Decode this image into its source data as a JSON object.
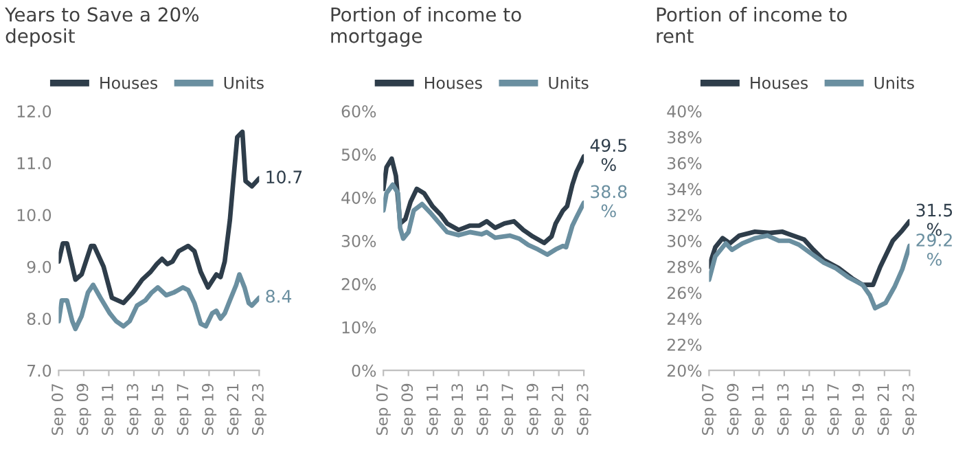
{
  "chart_data": [
    {
      "type": "line",
      "title": "Years to Save a 20%\ndeposit",
      "legend": "top",
      "grid": false,
      "xlim": [
        "2007-09",
        "2023-09"
      ],
      "ylim": [
        7.0,
        12.0
      ],
      "xticks": [
        {
          "value": "2007-09",
          "label": "Sep 07"
        },
        {
          "value": "2009-09",
          "label": "Sep 09"
        },
        {
          "value": "2011-09",
          "label": "Sep 11"
        },
        {
          "value": "2013-09",
          "label": "Sep 13"
        },
        {
          "value": "2015-09",
          "label": "Sep 15"
        },
        {
          "value": "2017-09",
          "label": "Sep 17"
        },
        {
          "value": "2019-09",
          "label": "Sep 19"
        },
        {
          "value": "2021-09",
          "label": "Sep 21"
        },
        {
          "value": "2023-09",
          "label": "Sep 23"
        }
      ],
      "yticks": [
        {
          "value": 7,
          "label": "7.0"
        },
        {
          "value": 8,
          "label": "8.0"
        },
        {
          "value": 9,
          "label": "9.0"
        },
        {
          "value": 10,
          "label": "10.0"
        },
        {
          "value": 11,
          "label": "11.0"
        },
        {
          "value": 12,
          "label": "12.0"
        }
      ],
      "series": [
        {
          "name": "Houses",
          "color": "#2e3d4a",
          "x": [
            "2007-09",
            "2008-01",
            "2008-05",
            "2009-01",
            "2009-07",
            "2010-04",
            "2010-07",
            "2011-04",
            "2011-12",
            "2012-11",
            "2013-08",
            "2014-05",
            "2015-01",
            "2015-07",
            "2015-12",
            "2016-05",
            "2016-10",
            "2017-04",
            "2018-01",
            "2018-07",
            "2019-01",
            "2019-08",
            "2020-04",
            "2020-08",
            "2020-12",
            "2021-05",
            "2021-08",
            "2021-12",
            "2022-05",
            "2022-08",
            "2023-02",
            "2023-09"
          ],
          "values": [
            9.1,
            9.45,
            9.45,
            8.75,
            8.85,
            9.4,
            9.4,
            9.0,
            8.4,
            8.3,
            8.5,
            8.75,
            8.9,
            9.05,
            9.15,
            9.05,
            9.1,
            9.3,
            9.4,
            9.3,
            8.9,
            8.6,
            8.85,
            8.8,
            9.1,
            9.9,
            10.6,
            11.5,
            11.6,
            10.65,
            10.55,
            10.7
          ]
        },
        {
          "name": "Units",
          "color": "#6a8fa0",
          "x": [
            "2007-09",
            "2007-12",
            "2008-05",
            "2008-10",
            "2009-01",
            "2009-07",
            "2010-01",
            "2010-06",
            "2011-01",
            "2011-10",
            "2012-04",
            "2012-11",
            "2013-05",
            "2013-12",
            "2014-08",
            "2015-02",
            "2015-08",
            "2016-04",
            "2016-11",
            "2017-08",
            "2018-01",
            "2018-07",
            "2019-01",
            "2019-06",
            "2019-12",
            "2020-04",
            "2020-08",
            "2020-12",
            "2021-05",
            "2021-11",
            "2022-02",
            "2022-07",
            "2022-11",
            "2023-02",
            "2023-09"
          ],
          "values": [
            7.95,
            8.35,
            8.35,
            7.95,
            7.8,
            8.05,
            8.5,
            8.65,
            8.4,
            8.1,
            7.95,
            7.85,
            7.95,
            8.25,
            8.35,
            8.5,
            8.6,
            8.45,
            8.5,
            8.6,
            8.55,
            8.3,
            7.9,
            7.85,
            8.1,
            8.15,
            8.0,
            8.1,
            8.35,
            8.65,
            8.85,
            8.6,
            8.3,
            8.25,
            8.4
          ]
        }
      ],
      "annotations": [
        {
          "text": "10.7",
          "x": "2023-09",
          "y": 10.7
        },
        {
          "text": "8.4",
          "x": "2023-09",
          "y": 8.4
        }
      ]
    },
    {
      "type": "line",
      "title": "Portion of income to\nmortgage",
      "legend": "top",
      "grid": false,
      "xlim": [
        "2007-09",
        "2023-09"
      ],
      "ylim": [
        0,
        60
      ],
      "xticks": [
        {
          "value": "2007-09",
          "label": "Sep 07"
        },
        {
          "value": "2009-09",
          "label": "Sep 09"
        },
        {
          "value": "2011-09",
          "label": "Sep 11"
        },
        {
          "value": "2013-09",
          "label": "Sep 13"
        },
        {
          "value": "2015-09",
          "label": "Sep 15"
        },
        {
          "value": "2017-09",
          "label": "Sep 17"
        },
        {
          "value": "2019-09",
          "label": "Sep 19"
        },
        {
          "value": "2021-09",
          "label": "Sep 21"
        },
        {
          "value": "2023-09",
          "label": "Sep 23"
        }
      ],
      "yticks": [
        {
          "value": 0,
          "label": "0%"
        },
        {
          "value": 10,
          "label": "10%"
        },
        {
          "value": 20,
          "label": "20%"
        },
        {
          "value": 30,
          "label": "30%"
        },
        {
          "value": 40,
          "label": "40%"
        },
        {
          "value": 50,
          "label": "50%"
        },
        {
          "value": 60,
          "label": "60%"
        }
      ],
      "series": [
        {
          "name": "Houses",
          "color": "#2e3d4a",
          "x": [
            "2007-09",
            "2007-12",
            "2008-05",
            "2008-09",
            "2009-01",
            "2009-06",
            "2009-11",
            "2010-05",
            "2010-12",
            "2011-08",
            "2012-04",
            "2012-10",
            "2013-09",
            "2014-08",
            "2015-05",
            "2015-12",
            "2016-08",
            "2017-05",
            "2018-02",
            "2018-11",
            "2019-08",
            "2020-07",
            "2021-02",
            "2021-06",
            "2022-01",
            "2022-05",
            "2022-10",
            "2023-02",
            "2023-09"
          ],
          "values": [
            42,
            47,
            49,
            45,
            34,
            35,
            39,
            42,
            41,
            38,
            36,
            34,
            32.5,
            33.5,
            33.5,
            34.5,
            33,
            34,
            34.5,
            32.5,
            31,
            29.5,
            31,
            34,
            37,
            38,
            43,
            46,
            49.5
          ]
        },
        {
          "name": "Units",
          "color": "#6a8fa0",
          "x": [
            "2007-09",
            "2007-12",
            "2008-06",
            "2008-11",
            "2009-01",
            "2009-04",
            "2009-09",
            "2010-02",
            "2010-10",
            "2011-06",
            "2012-01",
            "2012-10",
            "2013-09",
            "2014-08",
            "2015-07",
            "2015-12",
            "2016-08",
            "2017-10",
            "2018-07",
            "2019-04",
            "2020-01",
            "2020-10",
            "2021-06",
            "2022-01",
            "2022-04",
            "2022-10",
            "2023-02",
            "2023-09"
          ],
          "values": [
            37,
            41,
            43,
            41,
            33,
            30.5,
            32,
            37,
            38.5,
            36.5,
            34.5,
            32,
            31.3,
            32,
            31.5,
            32,
            30.7,
            31.2,
            30.5,
            29,
            28,
            26.8,
            28,
            28.8,
            28.5,
            33.5,
            35.5,
            38.8
          ]
        }
      ],
      "annotations": [
        {
          "text": "49.5\n%",
          "x": "2023-09",
          "y": 49.5
        },
        {
          "text": "38.8\n%",
          "x": "2023-09",
          "y": 38.8
        }
      ]
    },
    {
      "type": "line",
      "title": "Portion of income to\nrent",
      "legend": "top",
      "grid": false,
      "xlim": [
        "2007-09",
        "2023-09"
      ],
      "ylim": [
        20,
        40
      ],
      "xticks": [
        {
          "value": "2007-09",
          "label": "Sep 07"
        },
        {
          "value": "2009-09",
          "label": "Sep 09"
        },
        {
          "value": "2011-09",
          "label": "Sep 11"
        },
        {
          "value": "2013-09",
          "label": "Sep 13"
        },
        {
          "value": "2015-09",
          "label": "Sep 15"
        },
        {
          "value": "2017-09",
          "label": "Sep 17"
        },
        {
          "value": "2019-09",
          "label": "Sep 19"
        },
        {
          "value": "2021-09",
          "label": "Sep 21"
        },
        {
          "value": "2023-09",
          "label": "Sep 23"
        }
      ],
      "yticks": [
        {
          "value": 20,
          "label": "20%"
        },
        {
          "value": 22,
          "label": "22%"
        },
        {
          "value": 24,
          "label": "24%"
        },
        {
          "value": 26,
          "label": "26%"
        },
        {
          "value": 28,
          "label": "28%"
        },
        {
          "value": 30,
          "label": "30%"
        },
        {
          "value": 32,
          "label": "32%"
        },
        {
          "value": 34,
          "label": "34%"
        },
        {
          "value": 36,
          "label": "36%"
        },
        {
          "value": 38,
          "label": "38%"
        },
        {
          "value": 40,
          "label": "40%"
        }
      ],
      "series": [
        {
          "name": "Houses",
          "color": "#2e3d4a",
          "x": [
            "2007-09",
            "2008-03",
            "2008-10",
            "2009-05",
            "2010-02",
            "2011-05",
            "2012-07",
            "2013-07",
            "2014-02",
            "2015-04",
            "2016-01",
            "2016-11",
            "2018-01",
            "2019-02",
            "2019-12",
            "2020-10",
            "2021-05",
            "2022-05",
            "2023-02",
            "2023-09"
          ],
          "values": [
            28,
            29.5,
            30.2,
            29.8,
            30.4,
            30.7,
            30.6,
            30.7,
            30.5,
            30.1,
            29.3,
            28.5,
            27.9,
            27.1,
            26.6,
            26.6,
            28,
            30,
            30.8,
            31.5
          ]
        },
        {
          "name": "Units",
          "color": "#6a8fa0",
          "x": [
            "2007-09",
            "2008-03",
            "2009-01",
            "2009-07",
            "2010-05",
            "2011-05",
            "2012-05",
            "2013-04",
            "2014-02",
            "2014-11",
            "2015-11",
            "2016-11",
            "2017-10",
            "2018-10",
            "2019-12",
            "2020-07",
            "2020-12",
            "2021-10",
            "2022-07",
            "2023-02",
            "2023-09"
          ],
          "values": [
            27,
            28.8,
            29.8,
            29.3,
            29.8,
            30.2,
            30.4,
            30,
            30,
            29.7,
            29,
            28.3,
            27.9,
            27.2,
            26.6,
            25.8,
            24.8,
            25.2,
            26.5,
            27.8,
            29.6
          ]
        }
      ],
      "annotations": [
        {
          "text": "31.5\n%",
          "x": "2023-09",
          "y": 31.5
        },
        {
          "text": "29.2\n%",
          "x": "2023-09",
          "y": 29.2
        }
      ]
    }
  ]
}
